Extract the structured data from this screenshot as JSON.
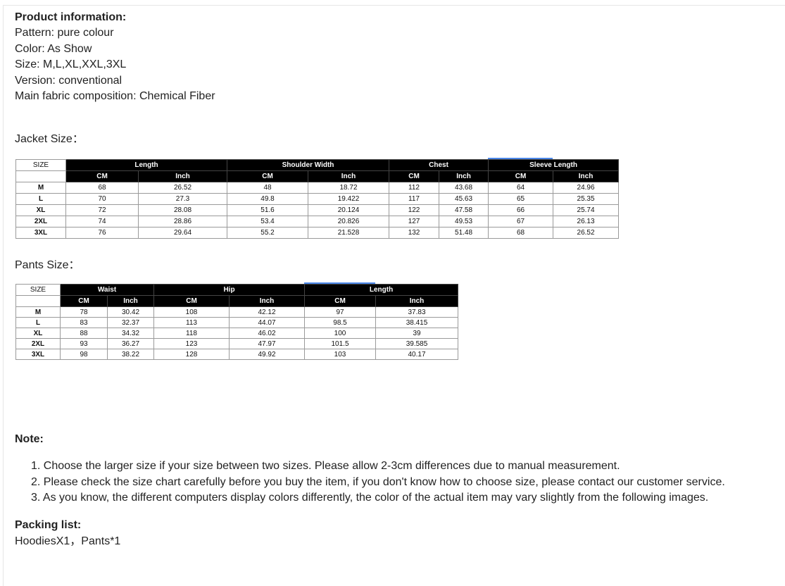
{
  "product_info": {
    "heading": "Product information:",
    "lines": [
      "Pattern: pure colour",
      "Color: As Show",
      "Size: M,L,XL,XXL,3XL",
      "Version: conventional",
      "Main fabric composition: Chemical Fiber"
    ]
  },
  "jacket": {
    "title": "Jacket Size：",
    "size_header": "SIZE",
    "groups": [
      "Length",
      "Shoulder Width",
      "Chest",
      "Sleeve Length"
    ],
    "units": [
      "CM",
      "Inch",
      "CM",
      "Inch",
      "CM",
      "Inch",
      "CM",
      "Inch"
    ],
    "rows": [
      [
        "M",
        "68",
        "26.52",
        "48",
        "18.72",
        "112",
        "43.68",
        "64",
        "24.96"
      ],
      [
        "L",
        "70",
        "27.3",
        "49.8",
        "19.422",
        "117",
        "45.63",
        "65",
        "25.35"
      ],
      [
        "XL",
        "72",
        "28.08",
        "51.6",
        "20.124",
        "122",
        "47.58",
        "66",
        "25.74"
      ],
      [
        "2XL",
        "74",
        "28.86",
        "53.4",
        "20.826",
        "127",
        "49.53",
        "67",
        "26.13"
      ],
      [
        "3XL",
        "76",
        "29.64",
        "55.2",
        "21.528",
        "132",
        "51.48",
        "68",
        "26.52"
      ]
    ]
  },
  "pants": {
    "title": "Pants Size：",
    "size_header": "SIZE",
    "groups": [
      "Waist",
      "Hip",
      "Length"
    ],
    "units": [
      "CM",
      "Inch",
      "CM",
      "Inch",
      "CM",
      "Inch"
    ],
    "rows": [
      [
        "M",
        "78",
        "30.42",
        "108",
        "42.12",
        "97",
        "37.83"
      ],
      [
        "L",
        "83",
        "32.37",
        "113",
        "44.07",
        "98.5",
        "38.415"
      ],
      [
        "XL",
        "88",
        "34.32",
        "118",
        "46.02",
        "100",
        "39"
      ],
      [
        "2XL",
        "93",
        "36.27",
        "123",
        "47.97",
        "101.5",
        "39.585"
      ],
      [
        "3XL",
        "98",
        "38.22",
        "128",
        "49.92",
        "103",
        "40.17"
      ]
    ]
  },
  "note": {
    "heading": "Note:",
    "items": [
      "1. Choose the larger size if your size between two sizes. Please allow 2-3cm differences due to manual measurement.",
      "2.  Please check the size chart carefully before you buy the item, if you don't know how to choose size, please contact our customer service.",
      "3. As you know, the different computers display colors differently, the color of the actual item may vary slightly from the following images."
    ]
  },
  "packing": {
    "heading": "Packing list:",
    "content": "HoodiesX1，Pants*1"
  },
  "colors": {
    "header_bg": "#000000",
    "accent": "#4a86e8"
  }
}
